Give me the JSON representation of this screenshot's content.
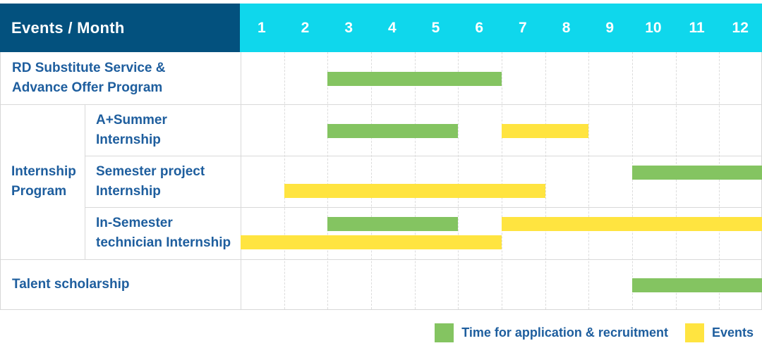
{
  "header": {
    "title": "Events / Month"
  },
  "theme": {
    "header_bg": "#03517e",
    "months_bg": "#0fd7ec",
    "header_text": "#ffffff",
    "label_color": "#1e5e9e",
    "application_color": "#84c461",
    "event_color": "#ffe440"
  },
  "chart_data": {
    "type": "gantt",
    "unit": "month",
    "title": "Events / Month",
    "months": [
      1,
      2,
      3,
      4,
      5,
      6,
      7,
      8,
      9,
      10,
      11,
      12
    ],
    "x_range": [
      1,
      12
    ],
    "group_label_lines": [
      "Internship",
      "Program"
    ],
    "rows": [
      {
        "label_lines": [
          "RD Substitute Service &",
          "Advance Offer Program"
        ],
        "group": null,
        "bars": [
          {
            "kind": "application",
            "start_month": 3,
            "end_month": 6,
            "lane": "single"
          }
        ]
      },
      {
        "label_lines": [
          "A+Summer",
          "Internship"
        ],
        "group": "Internship Program",
        "bars": [
          {
            "kind": "application",
            "start_month": 3,
            "end_month": 5,
            "lane": "single"
          },
          {
            "kind": "event",
            "start_month": 7,
            "end_month": 8,
            "lane": "single"
          }
        ]
      },
      {
        "label_lines": [
          "Semester project",
          "Internship"
        ],
        "group": "Internship Program",
        "bars": [
          {
            "kind": "application",
            "start_month": 10,
            "end_month": 12,
            "lane": "top"
          },
          {
            "kind": "event",
            "start_month": 2,
            "end_month": 7,
            "lane": "bottom"
          }
        ]
      },
      {
        "label_lines": [
          "In-Semester",
          "technician Internship"
        ],
        "group": "Internship Program",
        "bars": [
          {
            "kind": "application",
            "start_month": 3,
            "end_month": 5,
            "lane": "top"
          },
          {
            "kind": "event",
            "start_month": 7,
            "end_month": 12,
            "lane": "top"
          },
          {
            "kind": "event",
            "start_month": 1,
            "end_month": 6,
            "lane": "bottom"
          }
        ]
      },
      {
        "label_lines": [
          "Talent scholarship"
        ],
        "group": null,
        "bars": [
          {
            "kind": "application",
            "start_month": 10,
            "end_month": 12,
            "lane": "single"
          }
        ]
      }
    ],
    "legend": [
      {
        "kind": "application",
        "label": "Time for application & recruitment"
      },
      {
        "kind": "event",
        "label": "Events"
      }
    ],
    "legend_position": "bottom-right",
    "grid": true
  }
}
